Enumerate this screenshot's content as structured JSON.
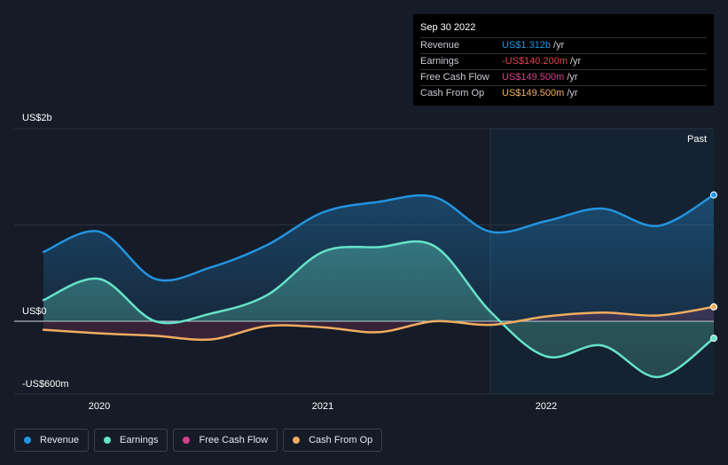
{
  "chart_data": {
    "type": "area",
    "x": [
      2019.75,
      2020.0,
      2020.25,
      2020.5,
      2020.75,
      2021.0,
      2021.25,
      2021.5,
      2021.75,
      2022.0,
      2022.25,
      2022.5,
      2022.75
    ],
    "series": [
      {
        "name": "Revenue",
        "color": "#2394df",
        "values": [
          0.72,
          0.93,
          0.44,
          0.56,
          0.79,
          1.13,
          1.24,
          1.29,
          0.93,
          1.04,
          1.17,
          0.99,
          1.312
        ]
      },
      {
        "name": "Earnings",
        "color": "#66e3c9",
        "values": [
          0.22,
          0.44,
          0.0,
          0.08,
          0.27,
          0.72,
          0.77,
          0.78,
          0.1,
          -0.29,
          -0.2,
          -0.46,
          -0.1402
        ]
      },
      {
        "name": "Free Cash Flow",
        "color": "#d2448b",
        "values": [
          -0.07,
          -0.1,
          -0.12,
          -0.15,
          -0.04,
          -0.05,
          -0.09,
          0.0,
          -0.03,
          0.05,
          0.09,
          0.06,
          0.1495
        ]
      },
      {
        "name": "Cash From Op",
        "color": "#f0ad61",
        "values": [
          -0.07,
          -0.1,
          -0.12,
          -0.15,
          -0.04,
          -0.05,
          -0.09,
          0.0,
          -0.03,
          0.05,
          0.09,
          0.06,
          0.1495
        ]
      }
    ],
    "ylim": [
      -0.6,
      2.0
    ],
    "y_unit": "US$ billions",
    "y_ticks": [
      {
        "value": 2.0,
        "label": "US$2b"
      },
      {
        "value": 0,
        "label": "US$0"
      },
      {
        "value": -0.6,
        "label": "-US$600m"
      }
    ],
    "x_ticks": [
      {
        "value": 2020,
        "label": "2020"
      },
      {
        "value": 2021,
        "label": "2021"
      },
      {
        "value": 2022,
        "label": "2022"
      }
    ],
    "past_from": 2021.75,
    "past_label": "Past",
    "grid": true,
    "legend_position": "bottom-left"
  },
  "tooltip": {
    "date": "Sep 30 2022",
    "rows": [
      {
        "label": "Revenue",
        "value": "US$1.312b",
        "unit": "/yr",
        "color": "#2394df"
      },
      {
        "label": "Earnings",
        "value": "-US$140.200m",
        "unit": "/yr",
        "color": "#e8434f"
      },
      {
        "label": "Free Cash Flow",
        "value": "US$149.500m",
        "unit": "/yr",
        "color": "#d2448b"
      },
      {
        "label": "Cash From Op",
        "value": "US$149.500m",
        "unit": "/yr",
        "color": "#f0ad61"
      }
    ]
  },
  "legend": [
    {
      "label": "Revenue",
      "color": "#2394df"
    },
    {
      "label": "Earnings",
      "color": "#66e3c9"
    },
    {
      "label": "Free Cash Flow",
      "color": "#d2448b"
    },
    {
      "label": "Cash From Op",
      "color": "#f0ad61"
    }
  ]
}
